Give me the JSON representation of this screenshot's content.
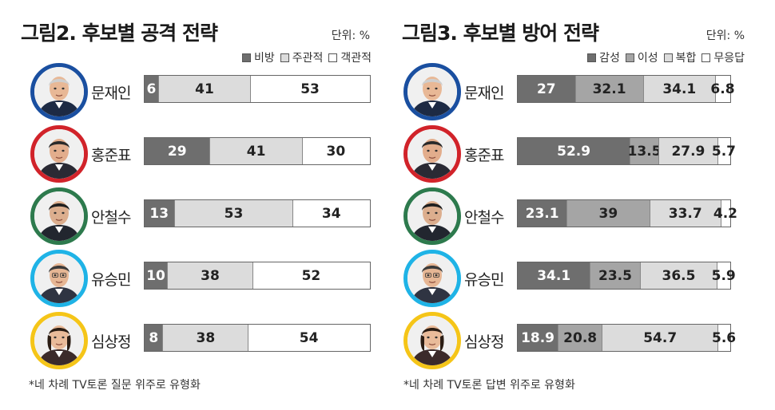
{
  "attack": {
    "title": "그림2. 후보별 공격 전략",
    "unit": "단위: %",
    "footnote": "*네 차례 TV토론 질문 위주로 유형화"
  },
  "defense": {
    "title": "그림3. 후보별 방어 전략",
    "unit": "단위: %",
    "footnote": "*네 차례 TV토론 답변 위주로 유형화"
  },
  "candidates": [
    {
      "name": "문재인",
      "ring_color": "#1a4fa0",
      "icon": "portrait-moon"
    },
    {
      "name": "홍준표",
      "ring_color": "#d1232a",
      "icon": "portrait-hong"
    },
    {
      "name": "안철수",
      "ring_color": "#2d7a4d",
      "icon": "portrait-ahn"
    },
    {
      "name": "유승민",
      "ring_color": "#1fb3e6",
      "icon": "portrait-yoo"
    },
    {
      "name": "심상정",
      "ring_color": "#f5c518",
      "icon": "portrait-sim"
    }
  ],
  "chart_data": [
    {
      "type": "bar",
      "stacked": true,
      "orientation": "horizontal",
      "title": "그림2. 후보별 공격 전략",
      "unit": "단위: %",
      "categories": [
        "문재인",
        "홍준표",
        "안철수",
        "유승민",
        "심상정"
      ],
      "series": [
        {
          "name": "비방",
          "color": "#6e6e6e",
          "values": [
            6,
            29,
            13,
            10,
            8
          ]
        },
        {
          "name": "주관적",
          "color": "#dcdcdc",
          "values": [
            41,
            41,
            53,
            38,
            38
          ]
        },
        {
          "name": "객관적",
          "color": "#ffffff",
          "values": [
            53,
            30,
            34,
            52,
            54
          ]
        }
      ],
      "xlim": [
        0,
        100
      ],
      "legend": "top-right",
      "grid": false
    },
    {
      "type": "bar",
      "stacked": true,
      "orientation": "horizontal",
      "title": "그림3. 후보별 방어 전략",
      "unit": "단위: %",
      "categories": [
        "문재인",
        "홍준표",
        "안철수",
        "유승민",
        "심상정"
      ],
      "series": [
        {
          "name": "감성",
          "color": "#6e6e6e",
          "values": [
            27,
            52.9,
            23.1,
            34.1,
            18.9
          ]
        },
        {
          "name": "이성",
          "color": "#a5a5a5",
          "values": [
            32.1,
            13.5,
            39,
            23.5,
            20.8
          ]
        },
        {
          "name": "복합",
          "color": "#dcdcdc",
          "values": [
            34.1,
            27.9,
            33.7,
            36.5,
            54.7
          ]
        },
        {
          "name": "무응답",
          "color": "#ffffff",
          "values": [
            6.8,
            5.7,
            4.2,
            5.9,
            5.6
          ]
        }
      ],
      "xlim": [
        0,
        100
      ],
      "legend": "top-right",
      "grid": false
    }
  ]
}
